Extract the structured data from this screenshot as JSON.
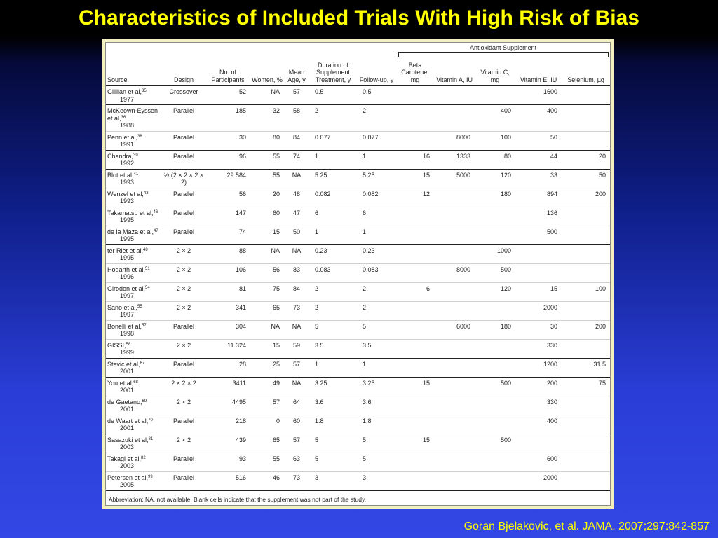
{
  "title": "Characteristics of Included Trials With High Risk of Bias",
  "citation": "Goran Bjelakovic, et al. JAMA. 2007;297:842-857",
  "group_header": "Antioxidant Supplement",
  "columns": [
    "Source",
    "Design",
    "No. of Participants",
    "Women, %",
    "Mean Age, y",
    "Duration of Supplement Treatment, y",
    "Follow-up, y",
    "Beta Carotene, mg",
    "Vitamin A, IU",
    "Vitamin C, mg",
    "Vitamin E, IU",
    "Selenium, µg"
  ],
  "rows": [
    {
      "src1": "Gillilan et al,",
      "ref": "35",
      "src2": "1977",
      "design": "Crossover",
      "n": "52",
      "women": "NA",
      "age": "57",
      "dur": "0.5",
      "fu": "0.5",
      "beta": "",
      "vita": "",
      "vitc": "",
      "vite": "1600",
      "sel": ""
    },
    {
      "src1": "McKeown-Eyssen et al,",
      "ref": "36",
      "src2": "1988",
      "design": "Parallel",
      "n": "185",
      "women": "32",
      "age": "58",
      "dur": "2",
      "fu": "2",
      "beta": "",
      "vita": "",
      "vitc": "400",
      "vite": "400",
      "sel": ""
    },
    {
      "src1": "Penn et al,",
      "ref": "38",
      "src2": "1991",
      "design": "Parallel",
      "n": "30",
      "women": "80",
      "age": "84",
      "dur": "0.077",
      "fu": "0.077",
      "beta": "",
      "vita": "8000",
      "vitc": "100",
      "vite": "50",
      "sel": ""
    },
    {
      "src1": "Chandra,",
      "ref": "39",
      "src2": "1992",
      "design": "Parallel",
      "n": "96",
      "women": "55",
      "age": "74",
      "dur": "1",
      "fu": "1",
      "beta": "16",
      "vita": "1333",
      "vitc": "80",
      "vite": "44",
      "sel": "20"
    },
    {
      "src1": "Blot et al,",
      "ref": "41",
      "src2": "1993",
      "design": "½ (2 × 2 × 2 × 2)",
      "n": "29 584",
      "women": "55",
      "age": "NA",
      "dur": "5.25",
      "fu": "5.25",
      "beta": "15",
      "vita": "5000",
      "vitc": "120",
      "vite": "33",
      "sel": "50"
    },
    {
      "src1": "Wenzel et al,",
      "ref": "43",
      "src2": "1993",
      "design": "Parallel",
      "n": "56",
      "women": "20",
      "age": "48",
      "dur": "0.082",
      "fu": "0.082",
      "beta": "12",
      "vita": "",
      "vitc": "180",
      "vite": "894",
      "sel": "200"
    },
    {
      "src1": "Takamatsu et al,",
      "ref": "46",
      "src2": "1995",
      "design": "Parallel",
      "n": "147",
      "women": "60",
      "age": "47",
      "dur": "6",
      "fu": "6",
      "beta": "",
      "vita": "",
      "vitc": "",
      "vite": "136",
      "sel": ""
    },
    {
      "src1": "de la Maza et al,",
      "ref": "47",
      "src2": "1995",
      "design": "Parallel",
      "n": "74",
      "women": "15",
      "age": "50",
      "dur": "1",
      "fu": "1",
      "beta": "",
      "vita": "",
      "vitc": "",
      "vite": "500",
      "sel": ""
    },
    {
      "src1": "ter Riet et al,",
      "ref": "48",
      "src2": "1995",
      "design": "2 × 2",
      "n": "88",
      "women": "NA",
      "age": "NA",
      "dur": "0.23",
      "fu": "0.23",
      "beta": "",
      "vita": "",
      "vitc": "1000",
      "vite": "",
      "sel": ""
    },
    {
      "src1": "Hogarth et al,",
      "ref": "51",
      "src2": "1996",
      "design": "2 × 2",
      "n": "106",
      "women": "56",
      "age": "83",
      "dur": "0.083",
      "fu": "0.083",
      "beta": "",
      "vita": "8000",
      "vitc": "500",
      "vite": "",
      "sel": ""
    },
    {
      "src1": "Girodon et al,",
      "ref": "54",
      "src2": "1997",
      "design": "2 × 2",
      "n": "81",
      "women": "75",
      "age": "84",
      "dur": "2",
      "fu": "2",
      "beta": "6",
      "vita": "",
      "vitc": "120",
      "vite": "15",
      "sel": "100"
    },
    {
      "src1": "Sano et al,",
      "ref": "55",
      "src2": "1997",
      "design": "2 × 2",
      "n": "341",
      "women": "65",
      "age": "73",
      "dur": "2",
      "fu": "2",
      "beta": "",
      "vita": "",
      "vitc": "",
      "vite": "2000",
      "sel": ""
    },
    {
      "src1": "Bonelli et al,",
      "ref": "57",
      "src2": "1998",
      "design": "Parallel",
      "n": "304",
      "women": "NA",
      "age": "NA",
      "dur": "5",
      "fu": "5",
      "beta": "",
      "vita": "6000",
      "vitc": "180",
      "vite": "30",
      "sel": "200"
    },
    {
      "src1": "GISSI,",
      "ref": "58",
      "src2": "1999",
      "design": "2 × 2",
      "n": "11 324",
      "women": "15",
      "age": "59",
      "dur": "3.5",
      "fu": "3.5",
      "beta": "",
      "vita": "",
      "vitc": "",
      "vite": "330",
      "sel": ""
    },
    {
      "src1": "Stevic et al,",
      "ref": "67",
      "src2": "2001",
      "design": "Parallel",
      "n": "28",
      "women": "25",
      "age": "57",
      "dur": "1",
      "fu": "1",
      "beta": "",
      "vita": "",
      "vitc": "",
      "vite": "1200",
      "sel": "31.5"
    },
    {
      "src1": "You et al,",
      "ref": "68",
      "src2": "2001",
      "design": "2 × 2 × 2",
      "n": "3411",
      "women": "49",
      "age": "NA",
      "dur": "3.25",
      "fu": "3.25",
      "beta": "15",
      "vita": "",
      "vitc": "500",
      "vite": "200",
      "sel": "75"
    },
    {
      "src1": "de Gaetano,",
      "ref": "69",
      "src2": "2001",
      "design": "2 × 2",
      "n": "4495",
      "women": "57",
      "age": "64",
      "dur": "3.6",
      "fu": "3.6",
      "beta": "",
      "vita": "",
      "vitc": "",
      "vite": "330",
      "sel": ""
    },
    {
      "src1": "de Waart et al,",
      "ref": "70",
      "src2": "2001",
      "design": "Parallel",
      "n": "218",
      "women": "0",
      "age": "60",
      "dur": "1.8",
      "fu": "1.8",
      "beta": "",
      "vita": "",
      "vitc": "",
      "vite": "400",
      "sel": ""
    },
    {
      "src1": "Sasazuki et al,",
      "ref": "81",
      "src2": "2003",
      "design": "2 × 2",
      "n": "439",
      "women": "65",
      "age": "57",
      "dur": "5",
      "fu": "5",
      "beta": "15",
      "vita": "",
      "vitc": "500",
      "vite": "",
      "sel": ""
    },
    {
      "src1": "Takagi et al,",
      "ref": "82",
      "src2": "2003",
      "design": "Parallel",
      "n": "93",
      "women": "55",
      "age": "63",
      "dur": "5",
      "fu": "5",
      "beta": "",
      "vita": "",
      "vitc": "",
      "vite": "600",
      "sel": ""
    },
    {
      "src1": "Petersen et al,",
      "ref": "99",
      "src2": "2005",
      "design": "Parallel",
      "n": "516",
      "women": "46",
      "age": "73",
      "dur": "3",
      "fu": "3",
      "beta": "",
      "vita": "",
      "vitc": "",
      "vite": "2000",
      "sel": ""
    }
  ],
  "abbreviation": "Abbreviation: NA, not available. Blank cells indicate that the supplement was not part of the study."
}
